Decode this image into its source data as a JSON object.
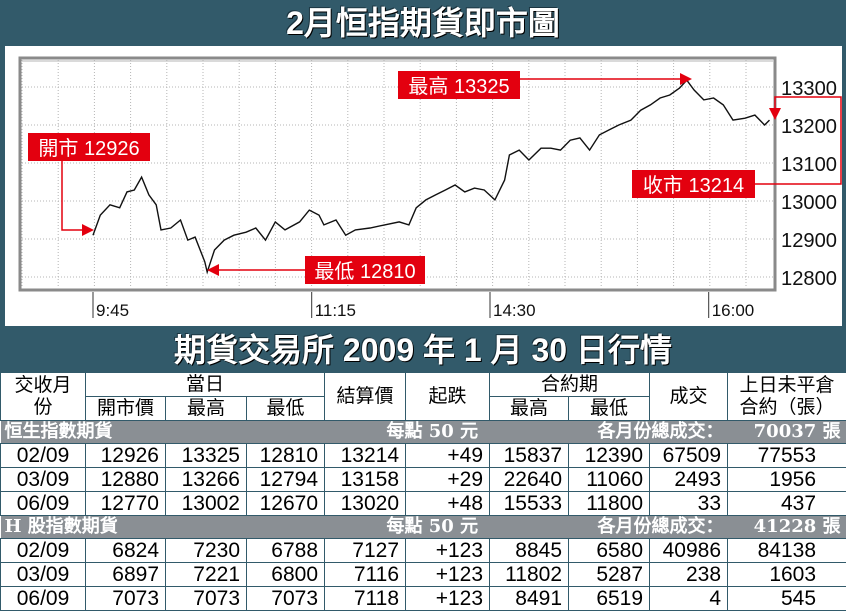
{
  "header": {
    "title": "2月恒指期貨即市圖"
  },
  "chart_data": {
    "type": "line",
    "title": "2月恒指期貨即市圖",
    "x_ticks": [
      "9:45",
      "11:15",
      "14:30",
      "16:00"
    ],
    "y_ticks": [
      12800,
      12900,
      13000,
      13100,
      13200,
      13300
    ],
    "ylim": [
      12780,
      13400
    ],
    "grid": true,
    "annotations": [
      {
        "label": "開市 12926",
        "time": "9:45",
        "value": 12926
      },
      {
        "label": "最高 13325",
        "time": "15:51",
        "value": 13325
      },
      {
        "label": "最低 12810",
        "time": "10:32",
        "value": 12810
      },
      {
        "label": "收市 13214",
        "time": "16:25",
        "value": 13214
      }
    ],
    "colors": {
      "line": "#111111",
      "callout": "#e3000f"
    },
    "points": [
      [
        "9:45",
        12910
      ],
      [
        "9:48",
        12963
      ],
      [
        "9:52",
        12990
      ],
      [
        "9:56",
        12982
      ],
      [
        "9:59",
        13024
      ],
      [
        "10:02",
        13029
      ],
      [
        "10:05",
        13063
      ],
      [
        "10:08",
        13016
      ],
      [
        "10:11",
        12990
      ],
      [
        "10:13",
        12924
      ],
      [
        "10:17",
        12929
      ],
      [
        "10:21",
        12950
      ],
      [
        "10:24",
        12897
      ],
      [
        "10:27",
        12905
      ],
      [
        "10:31",
        12840
      ],
      [
        "10:32",
        12813
      ],
      [
        "10:35",
        12871
      ],
      [
        "10:39",
        12897
      ],
      [
        "10:43",
        12910
      ],
      [
        "10:48",
        12918
      ],
      [
        "10:52",
        12929
      ],
      [
        "10:56",
        12897
      ],
      [
        "11:00",
        12945
      ],
      [
        "11:04",
        12924
      ],
      [
        "11:10",
        12945
      ],
      [
        "11:14",
        12976
      ],
      [
        "11:18",
        12963
      ],
      [
        "11:20",
        12937
      ],
      [
        "11:25",
        12950
      ],
      [
        "11:29",
        12910
      ],
      [
        "11:33",
        12924
      ],
      [
        "11:39",
        12929
      ],
      [
        "11:45",
        12937
      ],
      [
        "11:51",
        12945
      ],
      [
        "11:55",
        12937
      ],
      [
        "11:58",
        12982
      ],
      [
        "12:02",
        13003
      ],
      [
        "12:06",
        13016
      ],
      [
        "12:10",
        13029
      ],
      [
        "12:14",
        13042
      ],
      [
        "12:18",
        13024
      ],
      [
        "12:22",
        13034
      ],
      [
        "12:26",
        13029
      ],
      [
        "14:32",
        13003
      ],
      [
        "14:36",
        13055
      ],
      [
        "14:38",
        13121
      ],
      [
        "14:42",
        13134
      ],
      [
        "14:46",
        13108
      ],
      [
        "14:51",
        13139
      ],
      [
        "14:55",
        13139
      ],
      [
        "14:59",
        13134
      ],
      [
        "15:03",
        13160
      ],
      [
        "15:07",
        13166
      ],
      [
        "15:11",
        13134
      ],
      [
        "15:15",
        13174
      ],
      [
        "15:19",
        13187
      ],
      [
        "15:23",
        13200
      ],
      [
        "15:28",
        13213
      ],
      [
        "15:32",
        13239
      ],
      [
        "15:36",
        13253
      ],
      [
        "15:40",
        13271
      ],
      [
        "15:44",
        13279
      ],
      [
        "15:48",
        13297
      ],
      [
        "15:51",
        13318
      ],
      [
        "15:54",
        13292
      ],
      [
        "15:58",
        13266
      ],
      [
        "16:02",
        13271
      ],
      [
        "16:06",
        13253
      ],
      [
        "16:10",
        13213
      ],
      [
        "16:15",
        13218
      ],
      [
        "16:19",
        13226
      ],
      [
        "16:23",
        13200
      ],
      [
        "16:25",
        13213
      ]
    ]
  },
  "section_title": "期貨交易所 2009 年 1 月 30 日行情",
  "table": {
    "headers": {
      "month": "交收月份",
      "today": "當日",
      "open": "開市價",
      "high": "最高",
      "low": "最低",
      "settle": "結算價",
      "change": "起跌",
      "contract": "合約期",
      "c_high": "最高",
      "c_low": "最低",
      "volume": "成交",
      "oi": "上日未平倉合約（張）"
    },
    "groups": [
      {
        "name": "恒生指數期貨",
        "per_point": "每點 50 元",
        "total_label": "各月份總成交：",
        "total": "70037 張",
        "rows": [
          [
            "02/09",
            "12926",
            "13325",
            "12810",
            "13214",
            "+49",
            "15837",
            "12390",
            "67509",
            "77553"
          ],
          [
            "03/09",
            "12880",
            "13266",
            "12794",
            "13158",
            "+29",
            "22640",
            "11060",
            "2493",
            "1956"
          ],
          [
            "06/09",
            "12770",
            "13002",
            "12670",
            "13020",
            "+48",
            "15533",
            "11800",
            "33",
            "437"
          ]
        ]
      },
      {
        "name": "H 股指數期貨",
        "per_point": "每點 50 元",
        "total_label": "各月份總成交：",
        "total": "41228 張",
        "rows": [
          [
            "02/09",
            "6824",
            "7230",
            "6788",
            "7127",
            "+123",
            "8845",
            "6580",
            "40986",
            "84138"
          ],
          [
            "03/09",
            "6897",
            "7221",
            "6800",
            "7116",
            "+123",
            "11802",
            "5287",
            "238",
            "1603"
          ],
          [
            "06/09",
            "7073",
            "7073",
            "7073",
            "7118",
            "+123",
            "8491",
            "6519",
            "4",
            "545"
          ]
        ]
      }
    ]
  }
}
